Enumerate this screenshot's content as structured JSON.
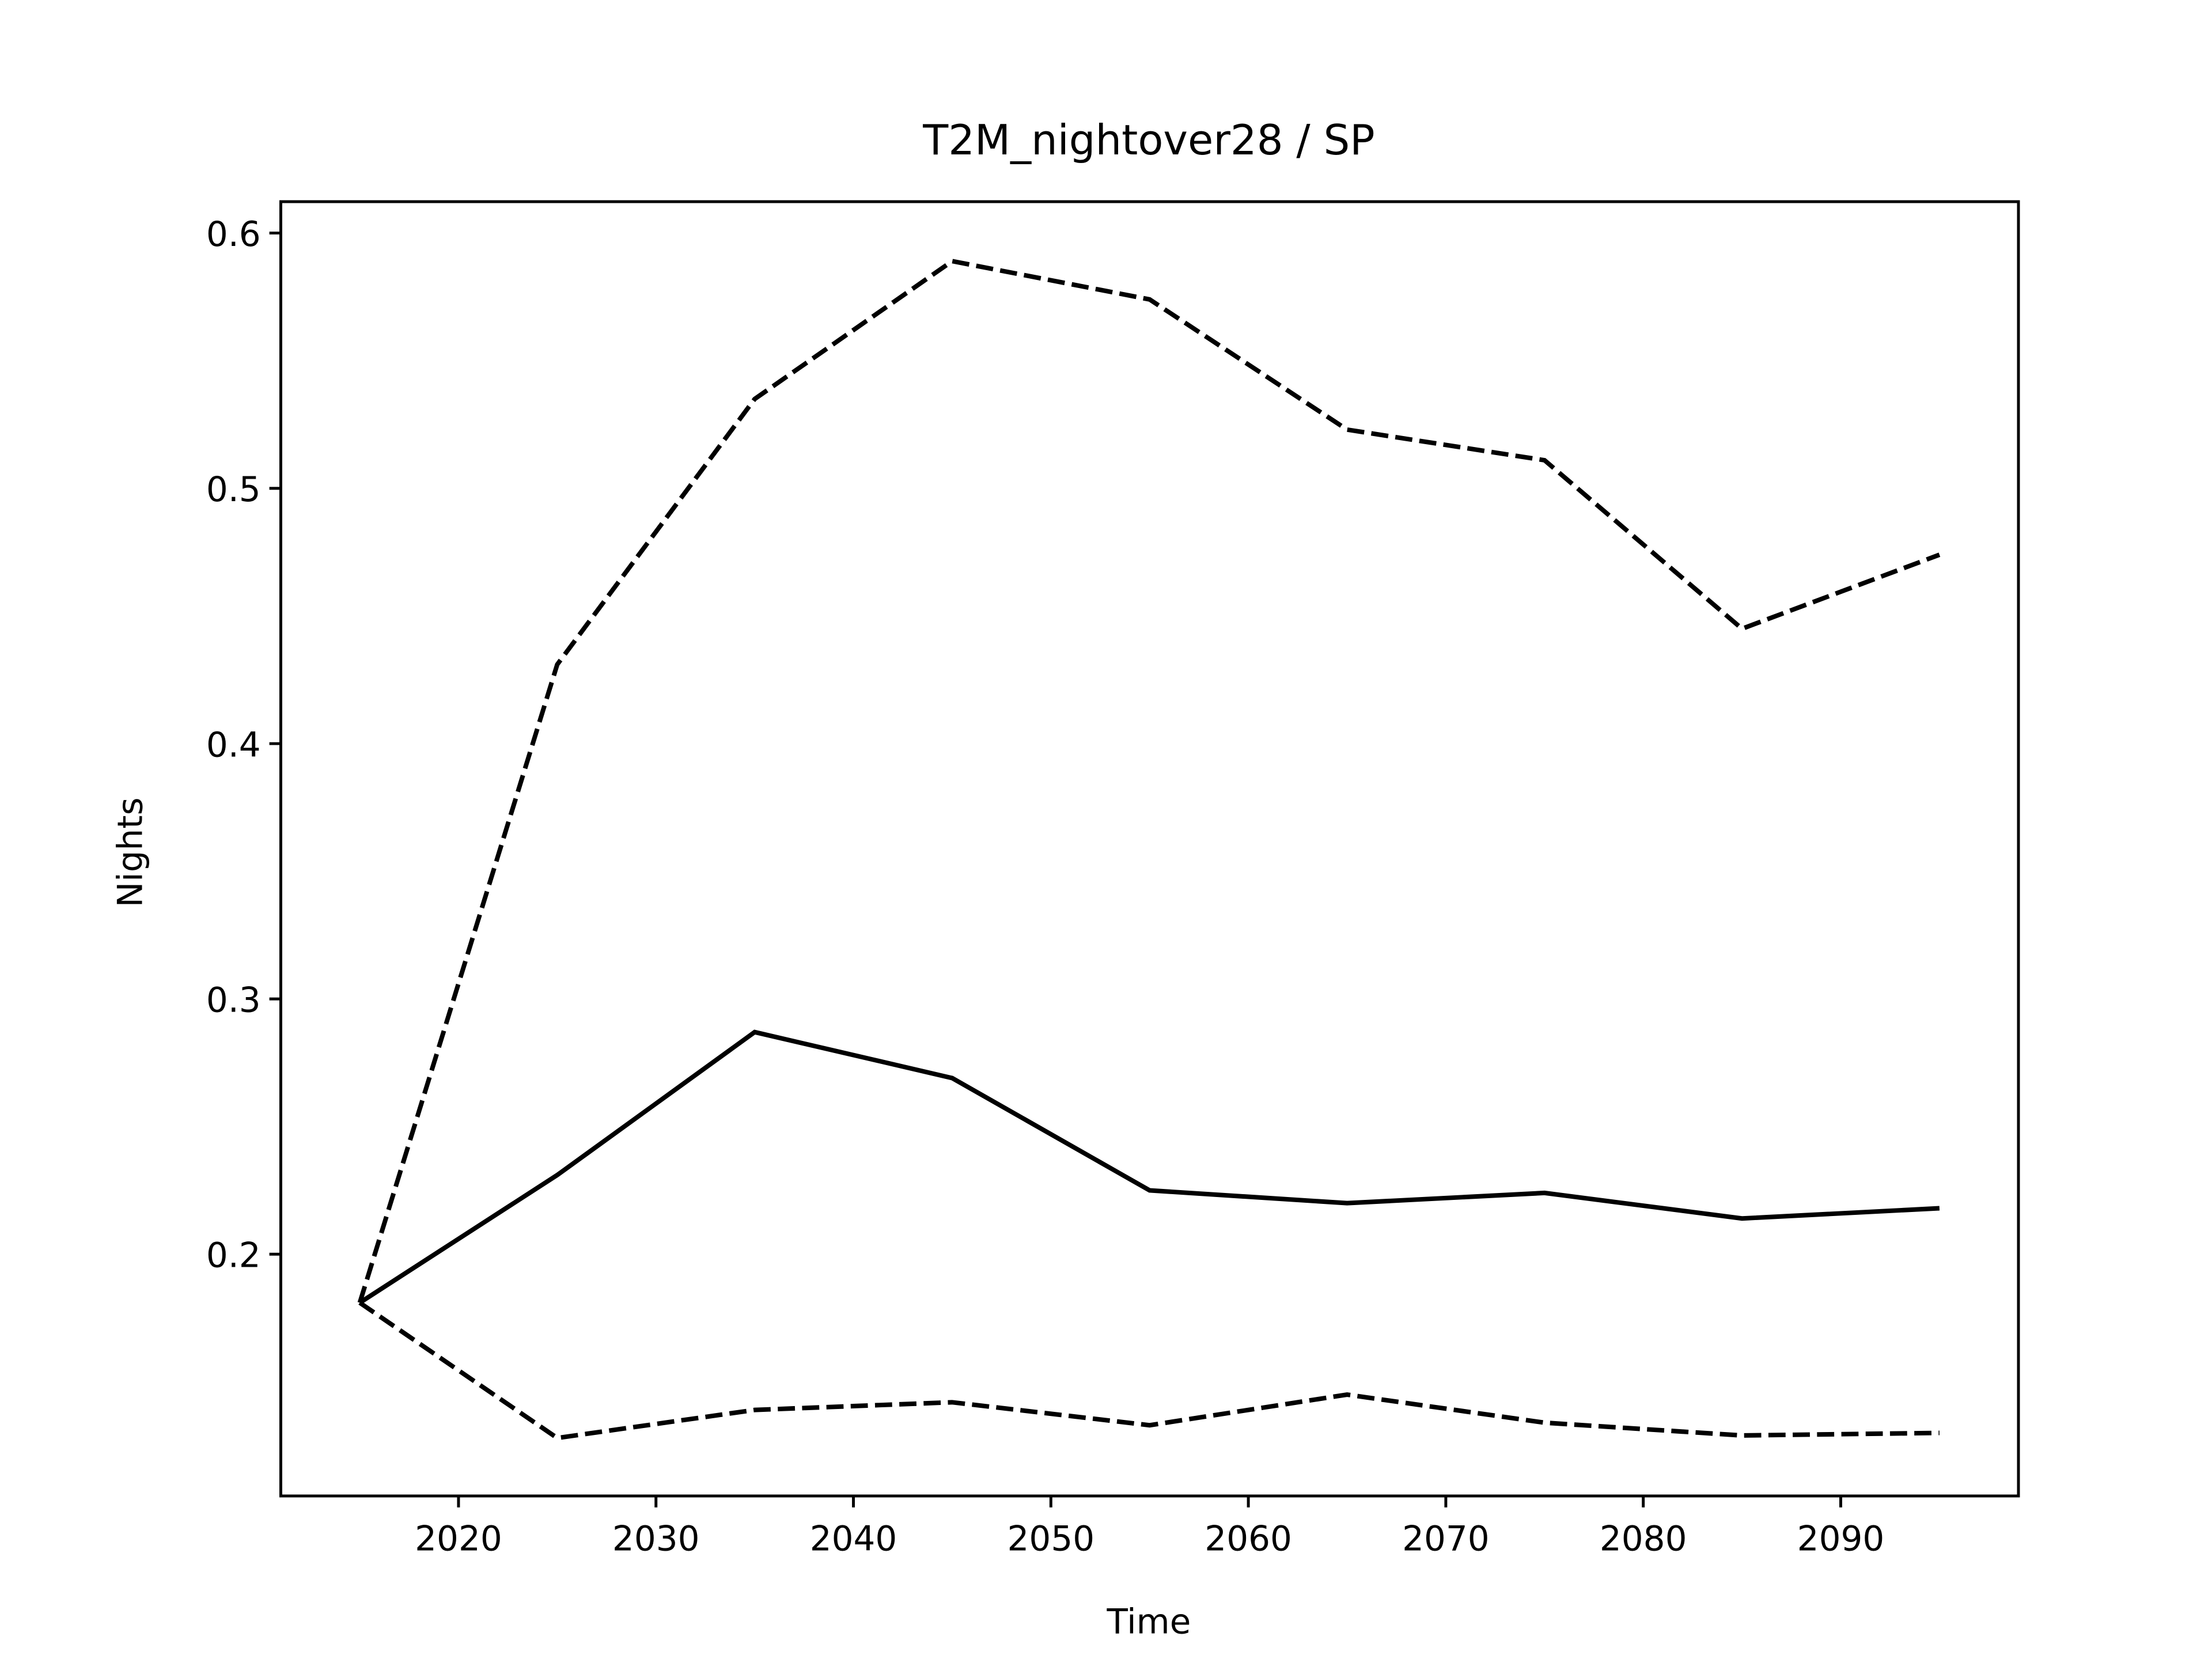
{
  "chart_data": {
    "type": "line",
    "title": "T2M_nightover28 / SP",
    "xlabel": "Time",
    "ylabel": "Nights",
    "x": [
      2015,
      2025,
      2035,
      2045,
      2055,
      2065,
      2075,
      2085,
      2095
    ],
    "series": [
      {
        "color": "#000000",
        "linestyle": "dashed",
        "values": [
          0.181,
          0.431,
          0.535,
          0.589,
          0.574,
          0.523,
          0.511,
          0.445,
          0.474
        ]
      },
      {
        "color": "#000000",
        "linestyle": "solid",
        "values": [
          0.181,
          0.231,
          0.287,
          0.269,
          0.225,
          0.22,
          0.224,
          0.214,
          0.218
        ]
      },
      {
        "color": "#000000",
        "linestyle": "dashed",
        "values": [
          0.181,
          0.128,
          0.139,
          0.142,
          0.133,
          0.145,
          0.134,
          0.129,
          0.13
        ]
      }
    ],
    "xlim": [
      2011,
      2099
    ],
    "xticks": [
      2020,
      2030,
      2040,
      2050,
      2060,
      2070,
      2080,
      2090
    ],
    "ylim": [
      0.1053,
      0.6123
    ],
    "yticks": [
      0.2,
      0.3,
      0.4,
      0.5,
      0.6
    ],
    "grid": false
  }
}
